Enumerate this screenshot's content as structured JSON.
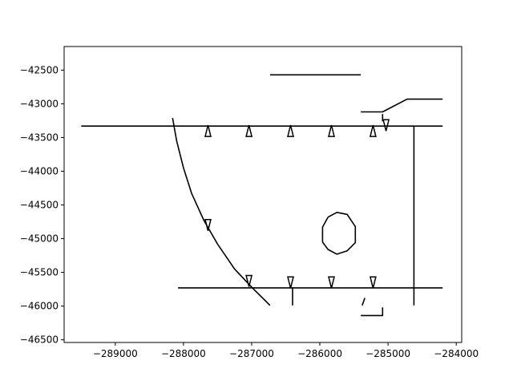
{
  "chart_data": {
    "type": "line",
    "title": "",
    "xlabel": "",
    "ylabel": "",
    "xlim": [
      -289750,
      -283920
    ],
    "ylim": [
      -46540,
      -42150
    ],
    "grid": false,
    "legend": "none",
    "line_color": "#000000",
    "x_ticks": [
      {
        "value": -289000,
        "label": "−289000"
      },
      {
        "value": -288000,
        "label": "−288000"
      },
      {
        "value": -287000,
        "label": "−287000"
      },
      {
        "value": -286000,
        "label": "−286000"
      },
      {
        "value": -285000,
        "label": "−285000"
      },
      {
        "value": -284000,
        "label": "−284000"
      }
    ],
    "y_ticks": [
      {
        "value": -42500,
        "label": "−42500"
      },
      {
        "value": -43000,
        "label": "−43000"
      },
      {
        "value": -43500,
        "label": "−43500"
      },
      {
        "value": -44000,
        "label": "−44000"
      },
      {
        "value": -44500,
        "label": "−44500"
      },
      {
        "value": -45000,
        "label": "−45000"
      },
      {
        "value": -45500,
        "label": "−45500"
      },
      {
        "value": -46000,
        "label": "−46000"
      },
      {
        "value": -46500,
        "label": "−46500"
      }
    ],
    "polylines": [
      {
        "id": "top-road",
        "points": [
          [
            -289500,
            -43330
          ],
          [
            -284200,
            -43330
          ]
        ]
      },
      {
        "id": "bottom-road",
        "points": [
          [
            -288080,
            -45730
          ],
          [
            -284200,
            -45730
          ]
        ]
      },
      {
        "id": "top-short-segment",
        "points": [
          [
            -286730,
            -42570
          ],
          [
            -285400,
            -42570
          ]
        ]
      },
      {
        "id": "upper-right-branch",
        "points": [
          [
            -285400,
            -43120
          ],
          [
            -285080,
            -43120
          ],
          [
            -284720,
            -42930
          ],
          [
            -284200,
            -42930
          ]
        ]
      },
      {
        "id": "right-vertical",
        "points": [
          [
            -284620,
            -43330
          ],
          [
            -284620,
            -45990
          ]
        ]
      },
      {
        "id": "mid-vertical-stub",
        "points": [
          [
            -286400,
            -45730
          ],
          [
            -286400,
            -45990
          ]
        ]
      },
      {
        "id": "stub-a",
        "points": [
          [
            -285080,
            -43150
          ],
          [
            -285080,
            -43260
          ]
        ]
      },
      {
        "id": "lower-dash",
        "points": [
          [
            -285340,
            -45880
          ],
          [
            -285380,
            -45990
          ]
        ]
      },
      {
        "id": "lower-hook",
        "points": [
          [
            -285400,
            -46140
          ],
          [
            -285080,
            -46140
          ],
          [
            -285080,
            -46020
          ]
        ]
      },
      {
        "id": "curved-road",
        "points": [
          [
            -288160,
            -43210
          ],
          [
            -288100,
            -43550
          ],
          [
            -288000,
            -43950
          ],
          [
            -287880,
            -44330
          ],
          [
            -287700,
            -44730
          ],
          [
            -287500,
            -45080
          ],
          [
            -287250,
            -45450
          ],
          [
            -287000,
            -45720
          ],
          [
            -286730,
            -45990
          ]
        ]
      },
      {
        "id": "oval",
        "points": [
          [
            -285880,
            -44680
          ],
          [
            -285750,
            -44610
          ],
          [
            -285600,
            -44640
          ],
          [
            -285480,
            -44820
          ],
          [
            -285480,
            -45060
          ],
          [
            -285600,
            -45180
          ],
          [
            -285750,
            -45230
          ],
          [
            -285880,
            -45160
          ],
          [
            -285960,
            -45050
          ],
          [
            -285960,
            -44830
          ],
          [
            -285880,
            -44680
          ]
        ]
      }
    ],
    "markers": [
      {
        "x": -287640,
        "y": -43400,
        "direction": "up"
      },
      {
        "x": -287040,
        "y": -43400,
        "direction": "up"
      },
      {
        "x": -286430,
        "y": -43400,
        "direction": "up"
      },
      {
        "x": -285830,
        "y": -43400,
        "direction": "up"
      },
      {
        "x": -285220,
        "y": -43400,
        "direction": "up"
      },
      {
        "x": -285030,
        "y": -43320,
        "direction": "down"
      },
      {
        "x": -287640,
        "y": -44800,
        "direction": "down"
      },
      {
        "x": -287040,
        "y": -45630,
        "direction": "down"
      },
      {
        "x": -286430,
        "y": -45650,
        "direction": "down"
      },
      {
        "x": -285830,
        "y": -45650,
        "direction": "down"
      },
      {
        "x": -285220,
        "y": -45650,
        "direction": "down"
      }
    ]
  }
}
